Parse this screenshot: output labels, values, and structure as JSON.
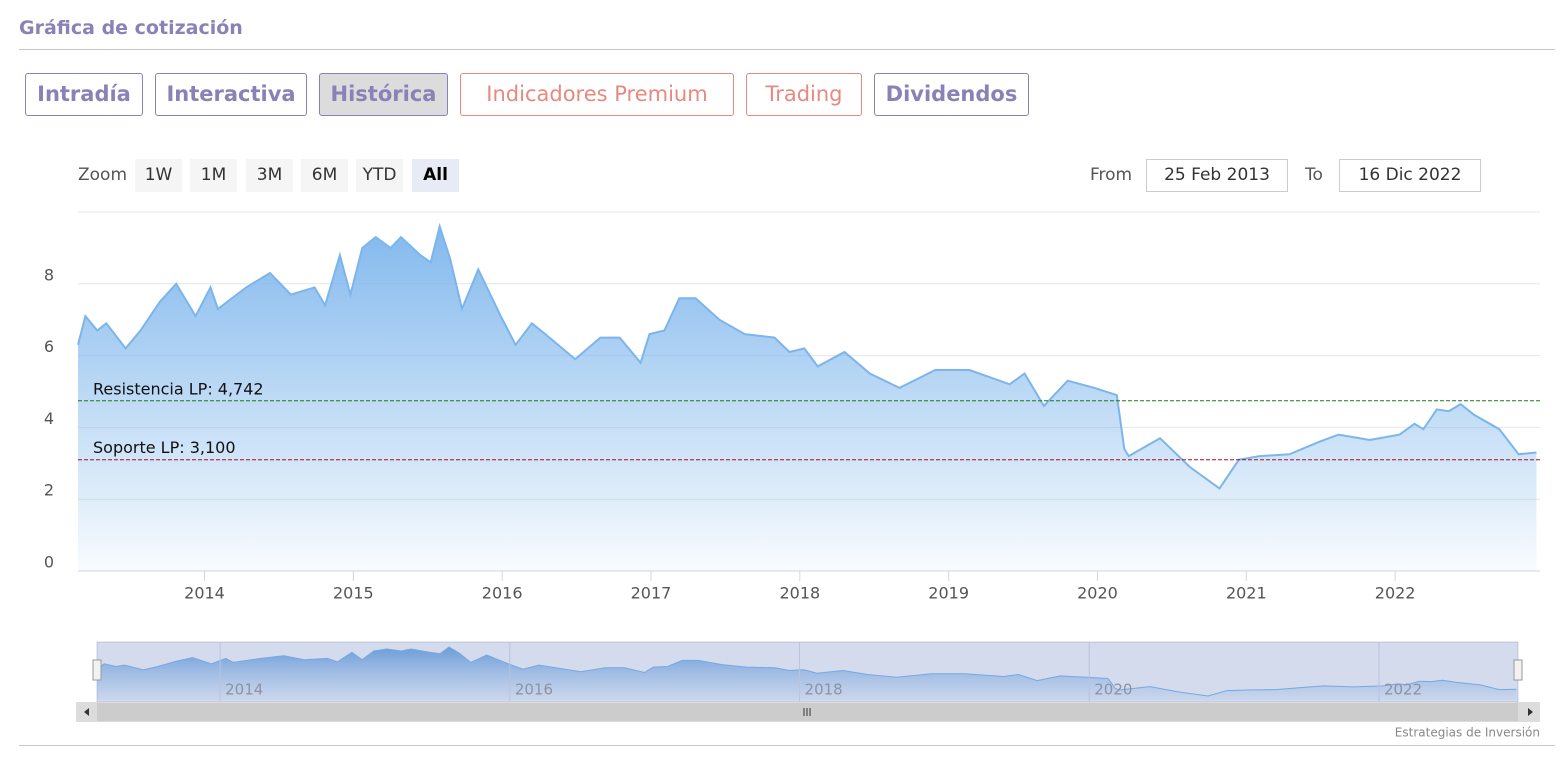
{
  "header": {
    "title": "Gráfica de cotización"
  },
  "tabs": [
    "Intradía",
    "Interactiva",
    "Histórica",
    "Indicadores Premium",
    "Trading",
    "Dividendos"
  ],
  "zoom": {
    "label": "Zoom",
    "buttons": [
      "1W",
      "1M",
      "3M",
      "6M",
      "YTD",
      "All"
    ]
  },
  "range": {
    "from_label": "From",
    "from": "25 Feb 2013",
    "to_label": "To",
    "to": "16 Dic 2022"
  },
  "chart_data": {
    "type": "area",
    "series": [
      {
        "color": "#7cb5ec",
        "x": [
          2013.15,
          2013.2,
          2013.28,
          2013.34,
          2013.47,
          2013.57,
          2013.7,
          2013.81,
          2013.94,
          2014.04,
          2014.09,
          2014.28,
          2014.44,
          2014.58,
          2014.74,
          2014.81,
          2014.91,
          2014.98,
          2015.06,
          2015.15,
          2015.25,
          2015.32,
          2015.45,
          2015.52,
          2015.58,
          2015.65,
          2015.73,
          2015.84,
          2015.99,
          2016.09,
          2016.2,
          2016.29,
          2016.49,
          2016.66,
          2016.79,
          2016.93,
          2016.99,
          2017.09,
          2017.19,
          2017.3,
          2017.46,
          2017.63,
          2017.83,
          2017.93,
          2018.03,
          2018.12,
          2018.3,
          2018.47,
          2018.67,
          2018.91,
          2019.14,
          2019.41,
          2019.51,
          2019.64,
          2019.8,
          2019.98,
          2020.13,
          2020.18,
          2020.21,
          2020.42,
          2020.62,
          2020.82,
          2020.95,
          2021.09,
          2021.29,
          2021.49,
          2021.62,
          2021.83,
          2022.03,
          2022.13,
          2022.19,
          2022.28,
          2022.36,
          2022.44,
          2022.53,
          2022.7,
          2022.83,
          2022.95
        ],
        "values": [
          6.3,
          7.1,
          6.7,
          6.9,
          6.2,
          6.7,
          7.5,
          8.0,
          7.1,
          7.9,
          7.3,
          7.9,
          8.3,
          7.7,
          7.9,
          7.4,
          8.8,
          7.7,
          9.0,
          9.3,
          9.0,
          9.3,
          8.8,
          8.6,
          9.6,
          8.7,
          7.3,
          8.4,
          7.1,
          6.3,
          6.9,
          6.6,
          5.9,
          6.5,
          6.5,
          5.8,
          6.6,
          6.7,
          7.6,
          7.6,
          7.0,
          6.6,
          6.5,
          6.1,
          6.2,
          5.7,
          6.1,
          5.5,
          5.1,
          5.6,
          5.6,
          5.2,
          5.5,
          4.6,
          5.3,
          5.1,
          4.9,
          3.4,
          3.2,
          3.7,
          2.9,
          2.3,
          3.1,
          3.2,
          3.25,
          3.6,
          3.8,
          3.65,
          3.8,
          4.1,
          3.95,
          4.5,
          4.45,
          4.65,
          4.35,
          3.95,
          3.25,
          3.3
        ]
      }
    ],
    "xlim": [
      2013.15,
      2022.96
    ],
    "xticks": [
      2014,
      2015,
      2016,
      2017,
      2018,
      2019,
      2020,
      2021,
      2022
    ],
    "ylim": [
      0,
      10
    ],
    "yticks": [
      0,
      2,
      4,
      6,
      8
    ],
    "grid": true,
    "plot_lines": [
      {
        "value": 4.742,
        "label": "Resistencia LP: 4,742",
        "color": "#1a7a1a"
      },
      {
        "value": 3.1,
        "label": "Soporte LP: 3,100",
        "color": "#a0102a"
      }
    ]
  },
  "navigator": {
    "xticks": [
      2014,
      2016,
      2018,
      2020,
      2022
    ]
  },
  "credit": "Estrategias de Inversión"
}
